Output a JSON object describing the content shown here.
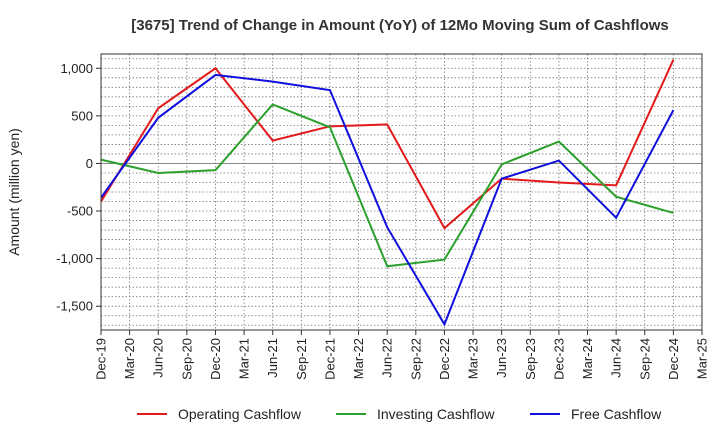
{
  "chart_data": {
    "type": "line",
    "title": "[3675]  Trend of Change in Amount (YoY) of 12Mo Moving Sum of Cashflows",
    "xlabel": "",
    "ylabel": "Amount (million yen)",
    "ylim": [
      -1750,
      1150
    ],
    "yticks": [
      1000,
      500,
      0,
      -500,
      -1000,
      -1500
    ],
    "ytick_labels": [
      "1,000",
      "500",
      "0",
      "-500",
      "-1,000",
      "-1,500"
    ],
    "categories": [
      "Dec-19",
      "Mar-20",
      "Jun-20",
      "Sep-20",
      "Dec-20",
      "Mar-21",
      "Jun-21",
      "Sep-21",
      "Dec-21",
      "Mar-22",
      "Jun-22",
      "Sep-22",
      "Dec-22",
      "Mar-23",
      "Jun-23",
      "Sep-23",
      "Dec-23",
      "Mar-24",
      "Jun-24",
      "Sep-24",
      "Dec-24",
      "Mar-25"
    ],
    "grid": true,
    "legend_position": "bottom",
    "series": [
      {
        "name": "Operating Cashflow",
        "color": "#e31a1c",
        "x": [
          "Dec-19",
          "Jun-20",
          "Dec-20",
          "Jun-21",
          "Dec-21",
          "Jun-22",
          "Dec-22",
          "Jun-23",
          "Dec-23",
          "Jun-24",
          "Dec-24"
        ],
        "values": [
          -400,
          580,
          1000,
          240,
          390,
          410,
          -680,
          -160,
          -200,
          -230,
          1090
        ]
      },
      {
        "name": "Investing Cashflow",
        "color": "#2ca02c",
        "x": [
          "Dec-19",
          "Jun-20",
          "Dec-20",
          "Jun-21",
          "Dec-21",
          "Jun-22",
          "Dec-22",
          "Jun-23",
          "Dec-23",
          "Jun-24",
          "Dec-24"
        ],
        "values": [
          40,
          -100,
          -70,
          620,
          380,
          -1080,
          -1010,
          -10,
          230,
          -350,
          -520
        ]
      },
      {
        "name": "Free Cashflow",
        "color": "#1010dd",
        "x": [
          "Dec-19",
          "Jun-20",
          "Dec-20",
          "Jun-21",
          "Dec-21",
          "Jun-22",
          "Dec-22",
          "Jun-23",
          "Dec-23",
          "Jun-24",
          "Dec-24"
        ],
        "values": [
          -360,
          480,
          930,
          860,
          770,
          -670,
          -1690,
          -160,
          30,
          -570,
          560
        ]
      }
    ]
  }
}
